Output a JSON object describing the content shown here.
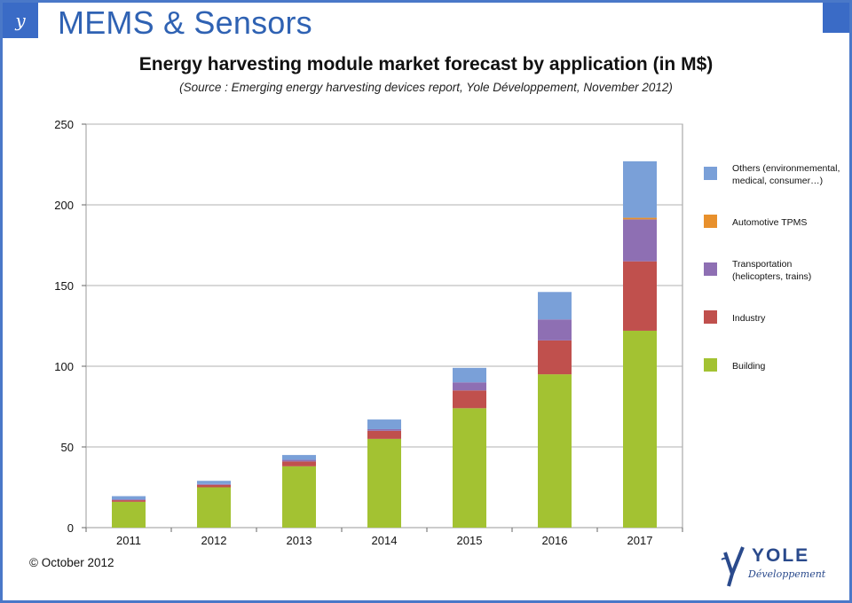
{
  "header": {
    "brand_title": "MEMS & Sensors",
    "logo_glyph": "y",
    "accent_color": "#3a6bc6",
    "title_color": "#2f62b3"
  },
  "footer": {
    "copyright": "© October 2012",
    "company": "YOLE",
    "company_sub": "Développement"
  },
  "chart_data": {
    "type": "bar",
    "stacked": true,
    "title": "Energy harvesting module market forecast by application (in M$)",
    "subtitle": "(Source : Emerging energy harvesting devices report, Yole Développement, November 2012)",
    "xlabel": "",
    "ylabel": "",
    "ylim": [
      0,
      250
    ],
    "yticks": [
      0,
      50,
      100,
      150,
      200,
      250
    ],
    "grid": true,
    "legend_position": "right",
    "categories": [
      "2011",
      "2012",
      "2013",
      "2014",
      "2015",
      "2016",
      "2017"
    ],
    "series": [
      {
        "name": "Building",
        "color": "#a3c232",
        "values": [
          16,
          25,
          38,
          55,
          74,
          95,
          122
        ]
      },
      {
        "name": "Industry",
        "color": "#c0504d",
        "values": [
          1,
          1.5,
          3,
          5,
          11,
          21,
          43
        ]
      },
      {
        "name": "Transportation\n(helicopters, trains)",
        "color": "#8e6fb3",
        "values": [
          0.5,
          0.5,
          1,
          1,
          5,
          13,
          26
        ]
      },
      {
        "name": "Automotive TPMS",
        "color": "#e8902c",
        "values": [
          0,
          0,
          0,
          0,
          0,
          0,
          1
        ]
      },
      {
        "name": "Others (environmemental,\nmedical, consumer…)",
        "color": "#7aa0d8",
        "values": [
          2,
          2,
          3,
          6,
          9,
          17,
          35
        ]
      }
    ],
    "legend_order": [
      4,
      3,
      2,
      1,
      0
    ]
  }
}
